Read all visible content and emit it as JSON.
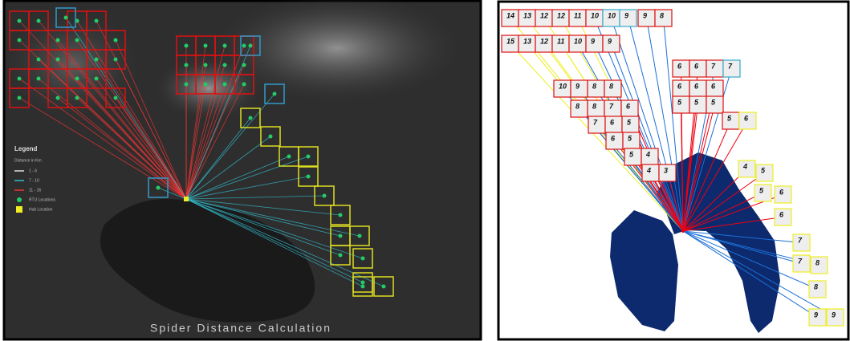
{
  "left_panel": {
    "legend": {
      "title": "Legend",
      "subtitle": "Distance in Km",
      "items": [
        "1 - 6",
        "7 - 10",
        "11 - 16",
        "RTU Locations",
        "Hub Location"
      ]
    },
    "caption": "Spider Distance Calculation"
  },
  "right_panel": {
    "cells": [
      "14",
      "13",
      "12",
      "12",
      "11",
      "10",
      "10",
      "9",
      "9",
      "8",
      "15",
      "13",
      "12",
      "11",
      "10",
      "9",
      "9",
      "10",
      "9",
      "8",
      "8",
      "8",
      "8",
      "7",
      "6",
      "7",
      "6",
      "5",
      "6",
      "5",
      "5",
      "4",
      "4",
      "3",
      "6",
      "6",
      "7",
      "7",
      "6",
      "6",
      "6",
      "5",
      "5",
      "5",
      "5",
      "6",
      "4",
      "5",
      "5",
      "6",
      "6",
      "7",
      "7",
      "8",
      "8",
      "9",
      "9"
    ]
  }
}
